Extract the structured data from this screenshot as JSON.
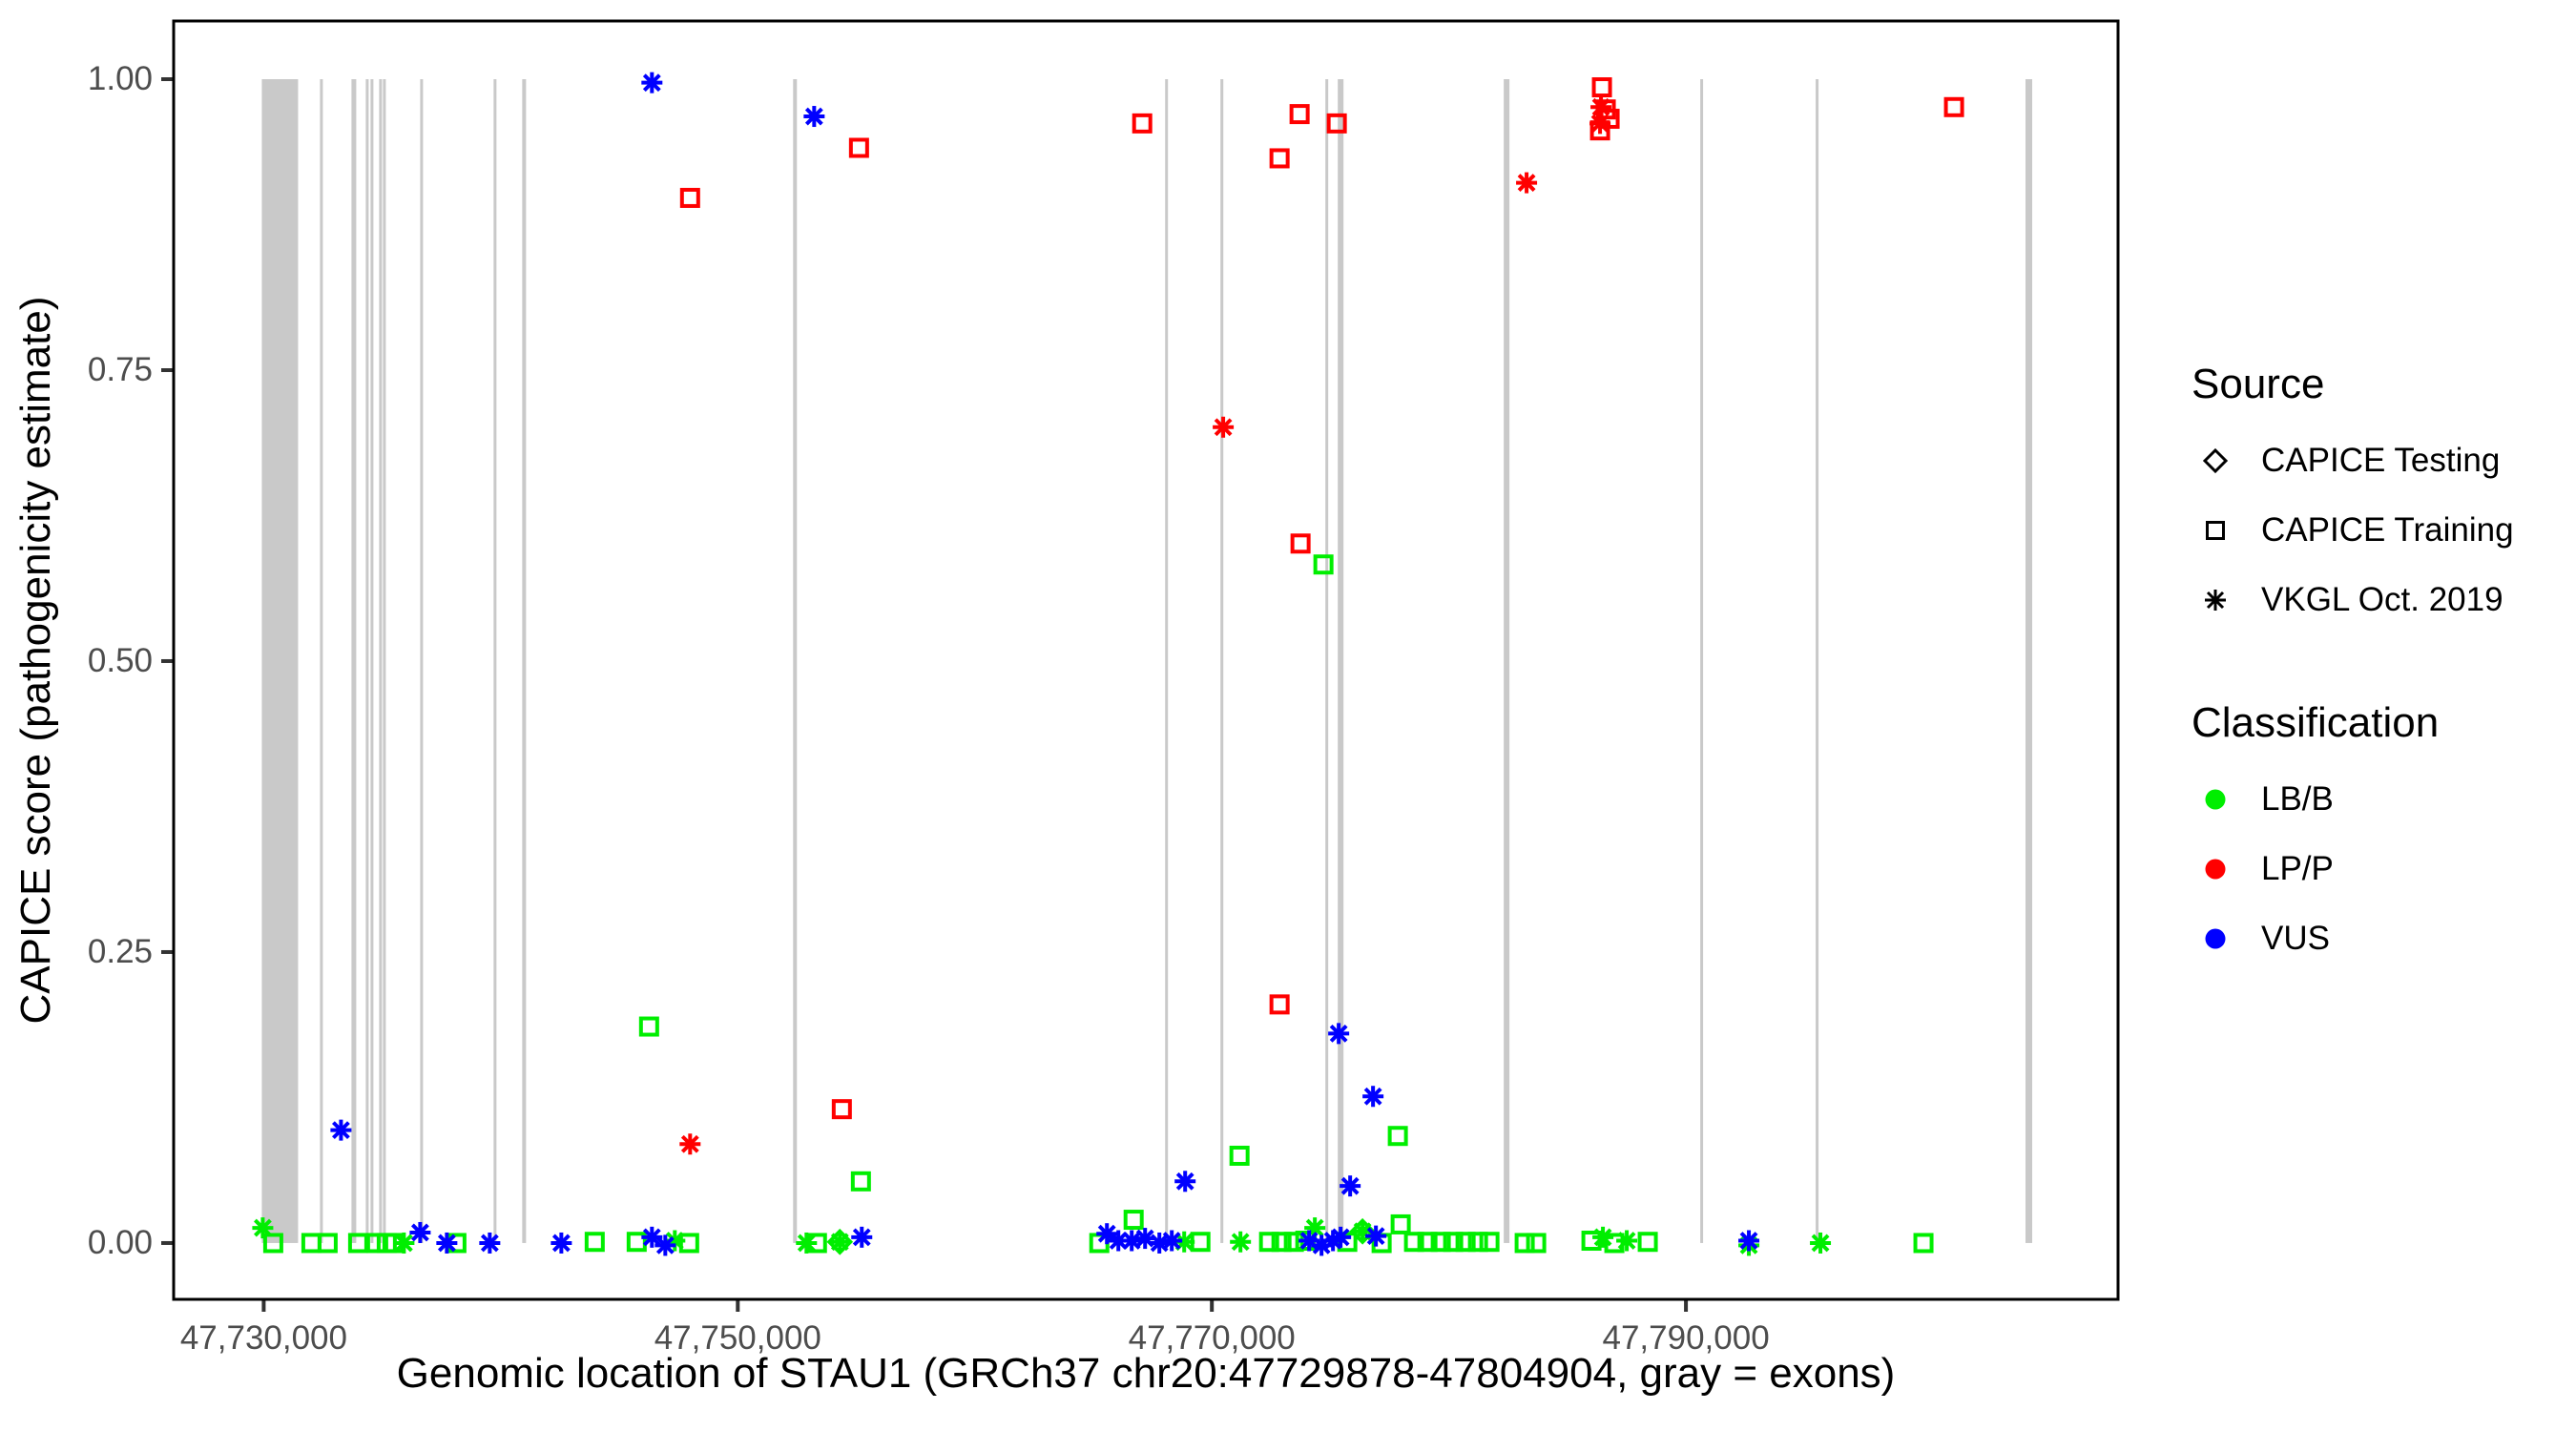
{
  "colors": {
    "LB/B": "#00EE00",
    "LP/P": "#FF0000",
    "VUS": "#0000FF",
    "exon": "#C9C9C9",
    "tick_text": "#4D4D4D",
    "axis_line": "#000000",
    "background": "#FFFFFF"
  },
  "legend": {
    "source": {
      "title": "Source",
      "items": [
        {
          "label": "CAPICE Testing",
          "shape": "diamond"
        },
        {
          "label": "CAPICE Training",
          "shape": "square"
        },
        {
          "label": "VKGL Oct. 2019",
          "shape": "asterisk"
        }
      ]
    },
    "classification": {
      "title": "Classification",
      "items": [
        {
          "label": "LB/B",
          "color": "#00EE00"
        },
        {
          "label": "LP/P",
          "color": "#FF0000"
        },
        {
          "label": "VUS",
          "color": "#0000FF"
        }
      ]
    }
  },
  "chart_data": {
    "type": "scatter",
    "title": "",
    "xlabel": "Genomic location of STAU1 (GRCh37 chr20:47729878-47804904, gray = exons)",
    "ylabel": "CAPICE score (pathogenicity estimate)",
    "grid": false,
    "legend_position": "right",
    "x_domain": [
      47726200,
      47808230
    ],
    "y_domain": [
      -0.0484,
      1.05
    ],
    "x_ticks": [
      {
        "value": 47730000,
        "label": "47,730,000"
      },
      {
        "value": 47750000,
        "label": "47,750,000"
      },
      {
        "value": 47770000,
        "label": "47,770,000"
      },
      {
        "value": 47790000,
        "label": "47,790,000"
      }
    ],
    "y_ticks": [
      {
        "value": 0.0,
        "label": "0.00"
      },
      {
        "value": 0.25,
        "label": "0.25"
      },
      {
        "value": 0.5,
        "label": "0.50"
      },
      {
        "value": 0.75,
        "label": "0.75"
      },
      {
        "value": 1.0,
        "label": "1.00"
      }
    ],
    "exons_note": "gray vertical rectangles from score 0 to 1; [start_bp, end_bp]",
    "exons": [
      [
        47729920,
        47731449
      ],
      [
        47732374,
        47732495
      ],
      [
        47733702,
        47733903
      ],
      [
        47734306,
        47734427
      ],
      [
        47734507,
        47734628
      ],
      [
        47734869,
        47734990
      ],
      [
        47735030,
        47735151
      ],
      [
        47736600,
        47736721
      ],
      [
        47739698,
        47739819
      ],
      [
        47740906,
        47741067
      ],
      [
        47752334,
        47752495
      ],
      [
        47768028,
        47768149
      ],
      [
        47770362,
        47770483
      ],
      [
        47774789,
        47774910
      ],
      [
        47775312,
        47775553
      ],
      [
        47782314,
        47782555
      ],
      [
        47790604,
        47790724
      ],
      [
        47795473,
        47795594
      ],
      [
        47804326,
        47804608
      ]
    ],
    "point_format": [
      "position_bp",
      "capice_score",
      "classification",
      "source"
    ],
    "points": [
      [
        47774707,
        0.583,
        "LB/B",
        "CAPICE Training"
      ],
      [
        47777846,
        0.092,
        "LB/B",
        "CAPICE Training"
      ],
      [
        47771166,
        0.075,
        "LB/B",
        "CAPICE Training"
      ],
      [
        47746258,
        0.186,
        "LB/B",
        "CAPICE Training"
      ],
      [
        47755194,
        0.053,
        "LB/B",
        "CAPICE Training"
      ],
      [
        47729960,
        0.013,
        "LB/B",
        "VKGL Oct. 2019"
      ],
      [
        47730402,
        0.0,
        "LB/B",
        "CAPICE Training"
      ],
      [
        47732012,
        0.0,
        "LB/B",
        "CAPICE Training"
      ],
      [
        47732696,
        0.0,
        "LB/B",
        "CAPICE Training"
      ],
      [
        47733984,
        0.0,
        "LB/B",
        "CAPICE Training"
      ],
      [
        47734748,
        0.0,
        "LB/B",
        "CAPICE Training"
      ],
      [
        47735191,
        0.0,
        "LB/B",
        "CAPICE Training"
      ],
      [
        47735513,
        0.0,
        "LB/B",
        "CAPICE Training"
      ],
      [
        47735915,
        0.0,
        "LB/B",
        "VKGL Oct. 2019"
      ],
      [
        47738129,
        0.0,
        "LB/B",
        "CAPICE Training"
      ],
      [
        47743964,
        0.001,
        "LB/B",
        "CAPICE Training"
      ],
      [
        47745735,
        0.001,
        "LB/B",
        "CAPICE Training"
      ],
      [
        47747344,
        0.002,
        "LB/B",
        "VKGL Oct. 2019"
      ],
      [
        47747948,
        0.0,
        "LB/B",
        "CAPICE Training"
      ],
      [
        47752898,
        0.0,
        "LB/B",
        "VKGL Oct. 2019"
      ],
      [
        47753340,
        0.0,
        "LB/B",
        "CAPICE Training"
      ],
      [
        47754306,
        0.001,
        "LB/B",
        "CAPICE Testing"
      ],
      [
        47754306,
        0.001,
        "LB/B",
        "VKGL Oct. 2019"
      ],
      [
        47765251,
        0.0,
        "LB/B",
        "CAPICE Training"
      ],
      [
        47766700,
        0.02,
        "LB/B",
        "CAPICE Training"
      ],
      [
        47768833,
        0.001,
        "LB/B",
        "VKGL Oct. 2019"
      ],
      [
        47769517,
        0.001,
        "LB/B",
        "CAPICE Training"
      ],
      [
        47771207,
        0.001,
        "LB/B",
        "VKGL Oct. 2019"
      ],
      [
        47772414,
        0.001,
        "LB/B",
        "CAPICE Training"
      ],
      [
        47772937,
        0.001,
        "LB/B",
        "CAPICE Training"
      ],
      [
        47773460,
        0.001,
        "LB/B",
        "CAPICE Training"
      ],
      [
        47773943,
        0.002,
        "LB/B",
        "CAPICE Training"
      ],
      [
        47774345,
        0.013,
        "LB/B",
        "VKGL Oct. 2019"
      ],
      [
        47775713,
        0.001,
        "LB/B",
        "CAPICE Training"
      ],
      [
        47776357,
        0.01,
        "LB/B",
        "CAPICE Testing"
      ],
      [
        47776357,
        0.01,
        "LB/B",
        "VKGL Oct. 2019"
      ],
      [
        47777162,
        0.0,
        "LB/B",
        "CAPICE Training"
      ],
      [
        47777967,
        0.016,
        "LB/B",
        "CAPICE Training"
      ],
      [
        47778530,
        0.001,
        "LB/B",
        "CAPICE Training"
      ],
      [
        47779094,
        0.001,
        "LB/B",
        "CAPICE Training"
      ],
      [
        47779657,
        0.001,
        "LB/B",
        "CAPICE Training"
      ],
      [
        47780180,
        0.001,
        "LB/B",
        "CAPICE Training"
      ],
      [
        47780704,
        0.001,
        "LB/B",
        "CAPICE Training"
      ],
      [
        47781227,
        0.001,
        "LB/B",
        "CAPICE Training"
      ],
      [
        47781710,
        0.001,
        "LB/B",
        "CAPICE Training"
      ],
      [
        47783198,
        0.0,
        "LB/B",
        "CAPICE Training"
      ],
      [
        47783681,
        0.0,
        "LB/B",
        "CAPICE Training"
      ],
      [
        47786015,
        0.002,
        "LB/B",
        "CAPICE Training"
      ],
      [
        47786498,
        0.005,
        "LB/B",
        "VKGL Oct. 2019"
      ],
      [
        47786981,
        0.0,
        "LB/B",
        "CAPICE Training"
      ],
      [
        47787504,
        0.002,
        "LB/B",
        "VKGL Oct. 2019"
      ],
      [
        47788390,
        0.001,
        "LB/B",
        "CAPICE Training"
      ],
      [
        47792655,
        -0.002,
        "LB/B",
        "VKGL Oct. 2019"
      ],
      [
        47795674,
        0.0,
        "LB/B",
        "VKGL Oct. 2019"
      ],
      [
        47800021,
        0.0,
        "LB/B",
        "CAPICE Training"
      ],
      [
        47746378,
        0.997,
        "VUS",
        "VKGL Oct. 2019"
      ],
      [
        47753222,
        0.968,
        "VUS",
        "VKGL Oct. 2019"
      ],
      [
        47775351,
        0.18,
        "VUS",
        "VKGL Oct. 2019"
      ],
      [
        47776800,
        0.126,
        "VUS",
        "VKGL Oct. 2019"
      ],
      [
        47775834,
        0.049,
        "VUS",
        "VKGL Oct. 2019"
      ],
      [
        47768873,
        0.053,
        "VUS",
        "VKGL Oct. 2019"
      ],
      [
        47733260,
        0.097,
        "VUS",
        "VKGL Oct. 2019"
      ],
      [
        47736600,
        0.009,
        "VUS",
        "VKGL Oct. 2019"
      ],
      [
        47737726,
        0.0,
        "VUS",
        "VKGL Oct. 2019"
      ],
      [
        47739537,
        0.0,
        "VUS",
        "VKGL Oct. 2019"
      ],
      [
        47742556,
        0.0,
        "VUS",
        "VKGL Oct. 2019"
      ],
      [
        47746378,
        0.005,
        "VUS",
        "VKGL Oct. 2019"
      ],
      [
        47746942,
        -0.002,
        "VUS",
        "VKGL Oct. 2019"
      ],
      [
        47755231,
        0.005,
        "VUS",
        "VKGL Oct. 2019"
      ],
      [
        47765573,
        0.008,
        "VUS",
        "VKGL Oct. 2019"
      ],
      [
        47766056,
        0.002,
        "VUS",
        "VKGL Oct. 2019"
      ],
      [
        47766619,
        0.002,
        "VUS",
        "VKGL Oct. 2019"
      ],
      [
        47767183,
        0.004,
        "VUS",
        "VKGL Oct. 2019"
      ],
      [
        47767786,
        0.0,
        "VUS",
        "VKGL Oct. 2019"
      ],
      [
        47768309,
        0.002,
        "VUS",
        "VKGL Oct. 2019"
      ],
      [
        47774104,
        0.002,
        "VUS",
        "VKGL Oct. 2019"
      ],
      [
        47774627,
        -0.002,
        "VUS",
        "VKGL Oct. 2019"
      ],
      [
        47775110,
        0.002,
        "VUS",
        "VKGL Oct. 2019"
      ],
      [
        47775432,
        0.005,
        "VUS",
        "VKGL Oct. 2019"
      ],
      [
        47776921,
        0.006,
        "VUS",
        "VKGL Oct. 2019"
      ],
      [
        47792655,
        0.002,
        "VUS",
        "VKGL Oct. 2019"
      ],
      [
        47755114,
        0.941,
        "LP/P",
        "CAPICE Training"
      ],
      [
        47747988,
        0.898,
        "LP/P",
        "CAPICE Training"
      ],
      [
        47767062,
        0.962,
        "LP/P",
        "CAPICE Training"
      ],
      [
        47773701,
        0.97,
        "LP/P",
        "CAPICE Training"
      ],
      [
        47772856,
        0.932,
        "LP/P",
        "CAPICE Training"
      ],
      [
        47775271,
        0.962,
        "LP/P",
        "CAPICE Training"
      ],
      [
        47783278,
        0.911,
        "LP/P",
        "VKGL Oct. 2019"
      ],
      [
        47786457,
        0.993,
        "LP/P",
        "CAPICE Training"
      ],
      [
        47786417,
        0.976,
        "LP/P",
        "VKGL Oct. 2019"
      ],
      [
        47786618,
        0.974,
        "LP/P",
        "CAPICE Training"
      ],
      [
        47786377,
        0.962,
        "LP/P",
        "VKGL Oct. 2019"
      ],
      [
        47786779,
        0.966,
        "LP/P",
        "CAPICE Training"
      ],
      [
        47786377,
        0.956,
        "LP/P",
        "CAPICE Training"
      ],
      [
        47801310,
        0.976,
        "LP/P",
        "CAPICE Training"
      ],
      [
        47770479,
        0.701,
        "LP/P",
        "VKGL Oct. 2019"
      ],
      [
        47773741,
        0.601,
        "LP/P",
        "CAPICE Training"
      ],
      [
        47772856,
        0.205,
        "LP/P",
        "CAPICE Training"
      ],
      [
        47747988,
        0.085,
        "LP/P",
        "VKGL Oct. 2019"
      ],
      [
        47754389,
        0.115,
        "LP/P",
        "CAPICE Training"
      ]
    ]
  }
}
